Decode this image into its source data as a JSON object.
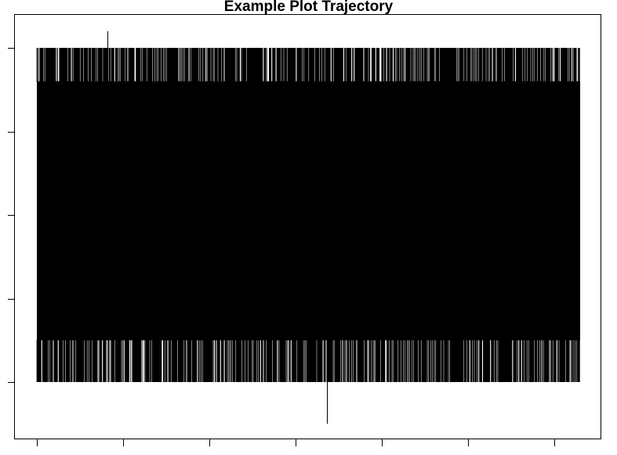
{
  "chart_data": {
    "type": "line",
    "title": "Example Plot Trajectory",
    "xlabel": "",
    "ylabel": "",
    "xlim": [
      0,
      7
    ],
    "ylim": [
      -0.5,
      4.5
    ],
    "x_ticks": [
      0,
      1,
      2,
      3,
      4,
      5,
      6
    ],
    "y_ticks": [
      0,
      1,
      2,
      3,
      4
    ],
    "grid": false,
    "legend": "none",
    "line_color": "#000000",
    "series": [
      {
        "x_range": [
          0,
          6.3
        ],
        "outer_band": [
          0,
          4
        ],
        "dense_band": [
          0.5,
          3.6
        ],
        "extremes": [
          {
            "x": 0.82,
            "y": 4.2
          },
          {
            "x": 3.36,
            "y": -0.5
          }
        ]
      }
    ]
  }
}
